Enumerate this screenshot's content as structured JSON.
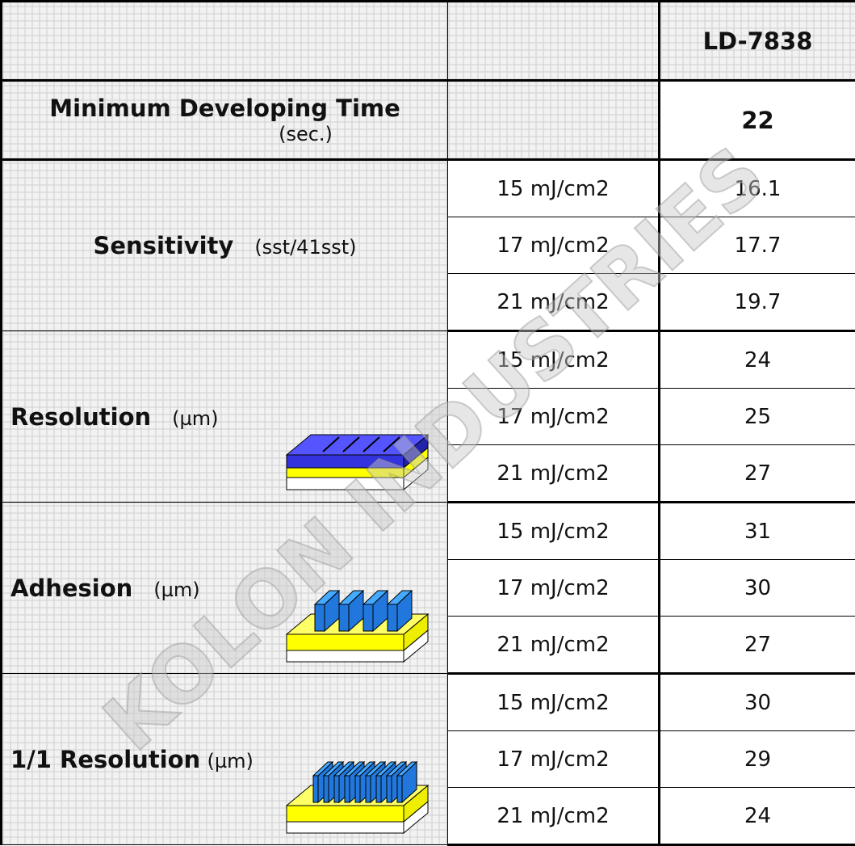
{
  "header": {
    "product": "LD-7838"
  },
  "min_developing_time": {
    "label": "Minimum Developing Time",
    "unit": "(sec.)",
    "value": 22
  },
  "groups": [
    {
      "label": "Sensitivity",
      "unit": "(sst/41sst)",
      "rows": [
        {
          "dose": "15 mJ/cm2",
          "value": 16.1
        },
        {
          "dose": "17 mJ/cm2",
          "value": 17.7
        },
        {
          "dose": "21 mJ/cm2",
          "value": 19.7
        }
      ]
    },
    {
      "label": "Resolution",
      "unit": "(µm)",
      "rows": [
        {
          "dose": "15 mJ/cm2",
          "value": 24
        },
        {
          "dose": "17 mJ/cm2",
          "value": 25
        },
        {
          "dose": "21 mJ/cm2",
          "value": 27
        }
      ]
    },
    {
      "label": "Adhesion",
      "unit": "(µm)",
      "rows": [
        {
          "dose": "15 mJ/cm2",
          "value": 31
        },
        {
          "dose": "17 mJ/cm2",
          "value": 30
        },
        {
          "dose": "21 mJ/cm2",
          "value": 27
        }
      ]
    },
    {
      "label": "1/1 Resolution",
      "unit": "(µm)",
      "rows": [
        {
          "dose": "15 mJ/cm2",
          "value": 30
        },
        {
          "dose": "17 mJ/cm2",
          "value": 29
        },
        {
          "dose": "21 mJ/cm2",
          "value": 24
        }
      ]
    }
  ],
  "watermark": "KOLON INDUSTRIES"
}
